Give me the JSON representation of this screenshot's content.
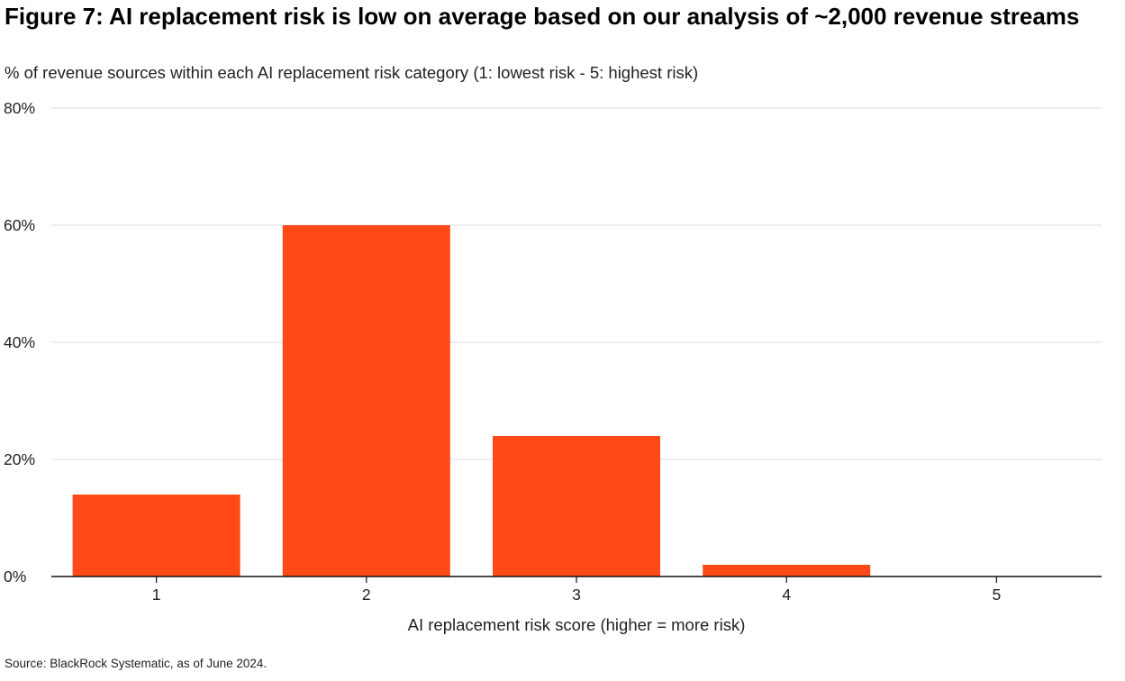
{
  "title": "Figure 7: AI replacement risk is low on average based on our analysis of ~2,000 revenue streams",
  "subtitle": "% of revenue sources within each AI replacement risk category (1: lowest risk - 5: highest risk)",
  "source": "Source: BlackRock Systematic, as of June 2024.",
  "colors": {
    "bar": "#FF4A17",
    "grid": "#e4e4e4",
    "axis": "#111111",
    "text": "#222222"
  },
  "chart_data": {
    "type": "bar",
    "categories": [
      "1",
      "2",
      "3",
      "4",
      "5"
    ],
    "values": [
      14,
      60,
      24,
      2,
      0
    ],
    "value_unit": "%",
    "xlabel": "AI replacement risk score (higher = more risk)",
    "ylabel": "",
    "ylim": [
      0,
      80
    ],
    "yticks": [
      0,
      20,
      40,
      60,
      80
    ],
    "ytick_labels": [
      "0%",
      "20%",
      "40%",
      "60%",
      "80%"
    ],
    "grid": true,
    "legend": "none"
  }
}
